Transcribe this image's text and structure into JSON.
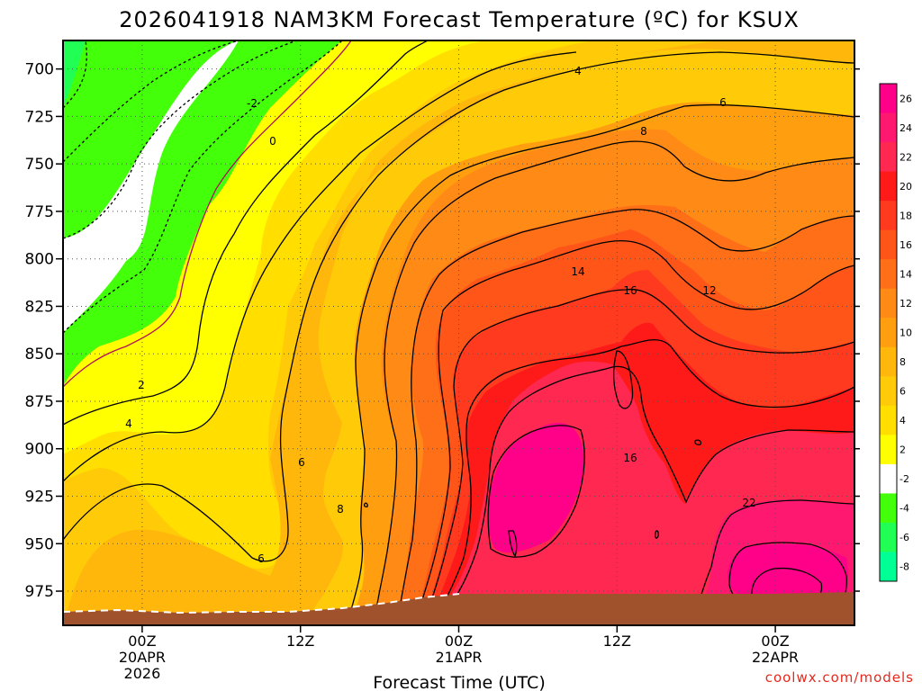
{
  "chart_data": {
    "type": "heatmap",
    "title": "2026041918 NAM3KM Forecast Temperature (ºC) for KSUX",
    "xlabel": "Forecast Time (UTC)",
    "ylabel": "",
    "y_axis": {
      "ticks": [
        700,
        725,
        750,
        775,
        800,
        825,
        850,
        875,
        900,
        925,
        950,
        975
      ],
      "range_hpa": [
        685,
        993
      ],
      "direction": "pressure increasing downward"
    },
    "x_axis": {
      "ticks": [
        {
          "label_lines": [
            "00Z",
            "20APR",
            "2026"
          ],
          "hour": 0
        },
        {
          "label_lines": [
            "12Z"
          ],
          "hour": 12
        },
        {
          "label_lines": [
            "00Z",
            "21APR"
          ],
          "hour": 24
        },
        {
          "label_lines": [
            "12Z"
          ],
          "hour": 36
        },
        {
          "label_lines": [
            "00Z",
            "22APR"
          ],
          "hour": 48
        }
      ],
      "range_hours_from_20APR00Z": [
        -6,
        54
      ]
    },
    "colorbar": {
      "labels": [
        "26",
        "24",
        "22",
        "20",
        "18",
        "16",
        "14",
        "12",
        "10",
        "8",
        "6",
        "4",
        "2",
        "-2",
        "-4",
        "-6",
        "-8"
      ],
      "colors": [
        "#ff0088",
        "#ff1870",
        "#ff2850",
        "#ff1a1a",
        "#ff3a1e",
        "#ff5519",
        "#ff6f18",
        "#ff8a15",
        "#ff9f10",
        "#ffb70c",
        "#ffcb08",
        "#ffde00",
        "#ffff00",
        "#ffffff",
        "#44ff0a",
        "#22ff54",
        "#00ff95"
      ]
    },
    "contour_levels": [
      -6,
      -4,
      -2,
      0,
      2,
      4,
      6,
      8,
      10,
      12,
      14,
      16,
      18,
      20,
      22,
      24
    ],
    "contour_labels": [
      "4",
      "6",
      "8",
      "-2",
      "0",
      "14",
      "16",
      "12",
      "2",
      "4",
      "6",
      "8",
      "6",
      "16",
      "22"
    ],
    "terrain_color": "#a0522d",
    "grid": true
  },
  "credit": "coolwx.com/models"
}
